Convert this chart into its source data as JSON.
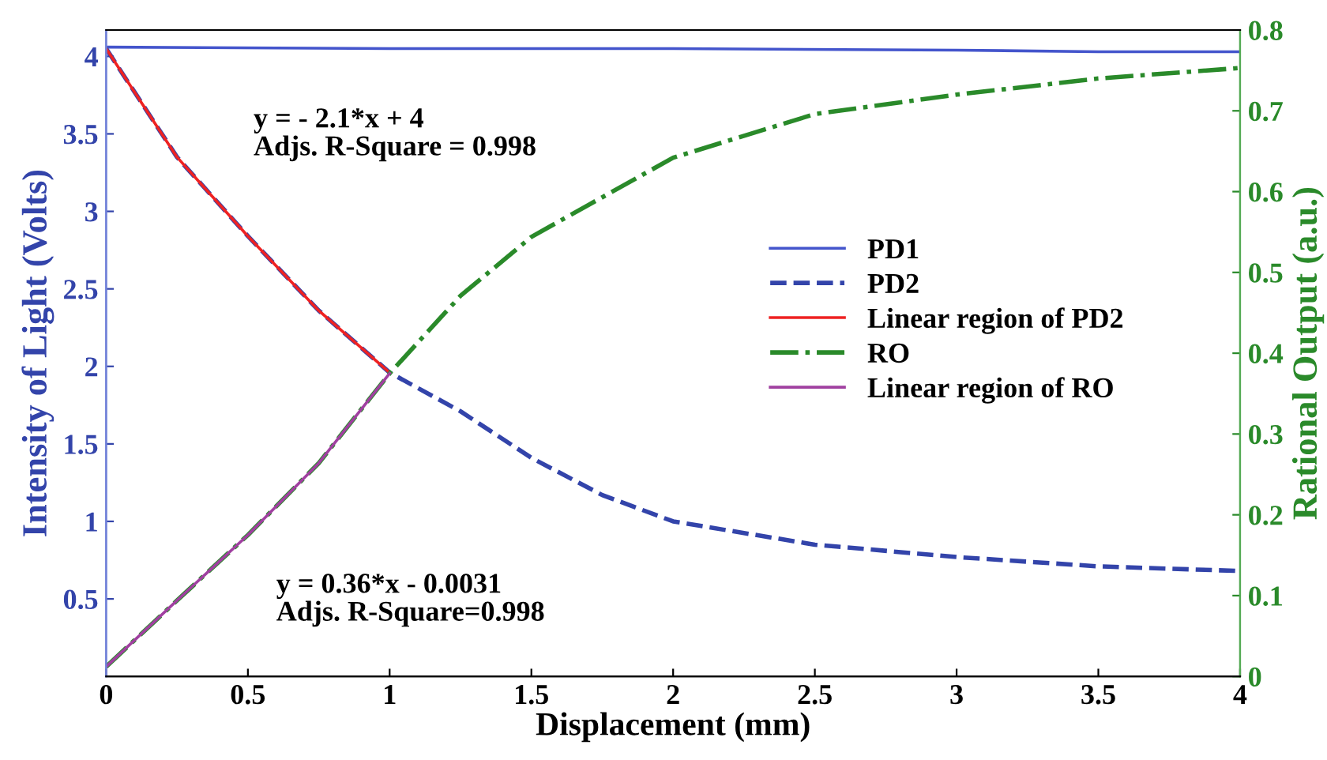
{
  "chart_data": {
    "type": "line",
    "xlabel": "Displacement (mm)",
    "ylabel": "Intensity of Light (Volts)",
    "y2label": "Rational Output (a.u.)",
    "xlim": [
      0,
      4
    ],
    "xticks": [
      0,
      0.5,
      1,
      1.5,
      2,
      2.5,
      3,
      3.5,
      4
    ],
    "ylim": [
      0,
      4.17
    ],
    "yticks": [
      0.5,
      1,
      1.5,
      2,
      2.5,
      3,
      3.5,
      4
    ],
    "y2lim": [
      0,
      0.8
    ],
    "y2ticks": [
      0,
      0.1,
      0.2,
      0.3,
      0.4,
      0.5,
      0.6,
      0.7,
      0.8
    ],
    "grid": false,
    "legend": "right",
    "marker": "none",
    "series": [
      {
        "name": "PD1",
        "color": "#4455cc",
        "line_style": "solid",
        "x": [
          0,
          1,
          2,
          3,
          3.5,
          4
        ],
        "values": [
          4.06,
          4.05,
          4.05,
          4.04,
          4.03,
          4.03
        ]
      },
      {
        "name": "PD2",
        "color": "#3344aa",
        "line_style": "dashed",
        "x": [
          0,
          0.25,
          0.5,
          0.75,
          1,
          1.25,
          1.5,
          1.75,
          2,
          2.5,
          3,
          3.5,
          4
        ],
        "values": [
          4.05,
          3.35,
          2.84,
          2.36,
          1.96,
          1.71,
          1.41,
          1.17,
          1.0,
          0.85,
          0.77,
          0.71,
          0.68
        ]
      },
      {
        "name": "Linear region of PD2",
        "color": "#ee2222",
        "line_style": "solid",
        "x": [
          0,
          0.25,
          0.5,
          0.75,
          1
        ],
        "values": [
          4.05,
          3.35,
          2.84,
          2.36,
          1.96
        ]
      },
      {
        "name": "RO",
        "color": "#2a8a2a",
        "line_style": "dashdot",
        "axis": "y2",
        "x": [
          0,
          0.25,
          0.5,
          0.75,
          1,
          1.25,
          1.5,
          2,
          2.5,
          3,
          3.5,
          4
        ],
        "values": [
          0.012,
          0.094,
          0.175,
          0.264,
          0.375,
          0.471,
          0.544,
          0.642,
          0.696,
          0.72,
          0.74,
          0.753
        ]
      },
      {
        "name": "Linear region of RO",
        "color": "#a040a0",
        "line_style": "solid",
        "axis": "y2",
        "x": [
          0,
          0.25,
          0.5,
          0.75,
          1
        ],
        "values": [
          0.012,
          0.094,
          0.175,
          0.264,
          0.375
        ]
      }
    ],
    "annotations": [
      "y = - 2.1*x + 4\nAdjs. R-Square = 0.998",
      "y = 0.36*x - 0.0031\nAdjs. R-Square=0.998"
    ]
  }
}
